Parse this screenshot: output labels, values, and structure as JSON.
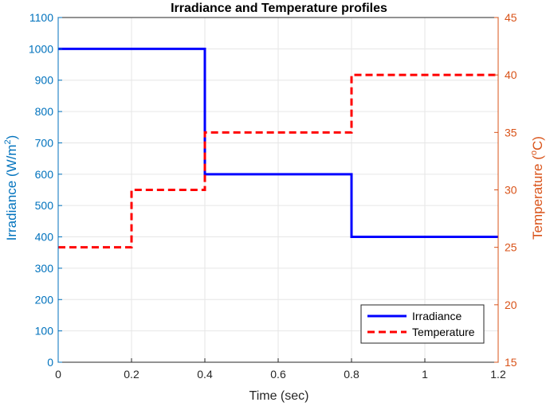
{
  "chart_data": {
    "type": "line",
    "title": "Irradiance and Temperature profiles",
    "xlabel": "Time (sec)",
    "ylabel_left": {
      "base": "Irradiance (W/m",
      "sup": "2",
      "tail": ")"
    },
    "ylabel_right": {
      "base": "Temperature (",
      "sup": "o",
      "tail": "C)"
    },
    "xlim": [
      0,
      1.2
    ],
    "ylim_left": [
      0,
      1100
    ],
    "ylim_right": [
      15,
      45
    ],
    "x_ticks": [
      "0",
      "0.2",
      "0.4",
      "0.6",
      "0.8",
      "1",
      "1.2"
    ],
    "y_left_ticks": [
      "0",
      "100",
      "200",
      "300",
      "400",
      "500",
      "600",
      "700",
      "800",
      "900",
      "1000",
      "1100"
    ],
    "y_right_ticks": [
      "15",
      "20",
      "25",
      "30",
      "35",
      "40",
      "45"
    ],
    "grid": true,
    "legend_position": "bottom-right",
    "colors": {
      "left_axis": "#0072BD",
      "right_axis": "#D95319",
      "irradiance": "#0000FF",
      "temperature": "#FF0000",
      "grid": "#E6E6E6"
    },
    "series": [
      {
        "name": "Irradiance",
        "axis": "left",
        "style": "solid",
        "x": [
          0,
          0.4,
          0.4,
          0.8,
          0.8,
          1.2
        ],
        "y": [
          1000,
          1000,
          600,
          600,
          400,
          400
        ]
      },
      {
        "name": "Temperature",
        "axis": "right",
        "style": "dashed",
        "x": [
          0,
          0.2,
          0.2,
          0.4,
          0.4,
          0.8,
          0.8,
          1.2
        ],
        "y": [
          25,
          25,
          30,
          30,
          35,
          35,
          40,
          40
        ]
      }
    ]
  }
}
